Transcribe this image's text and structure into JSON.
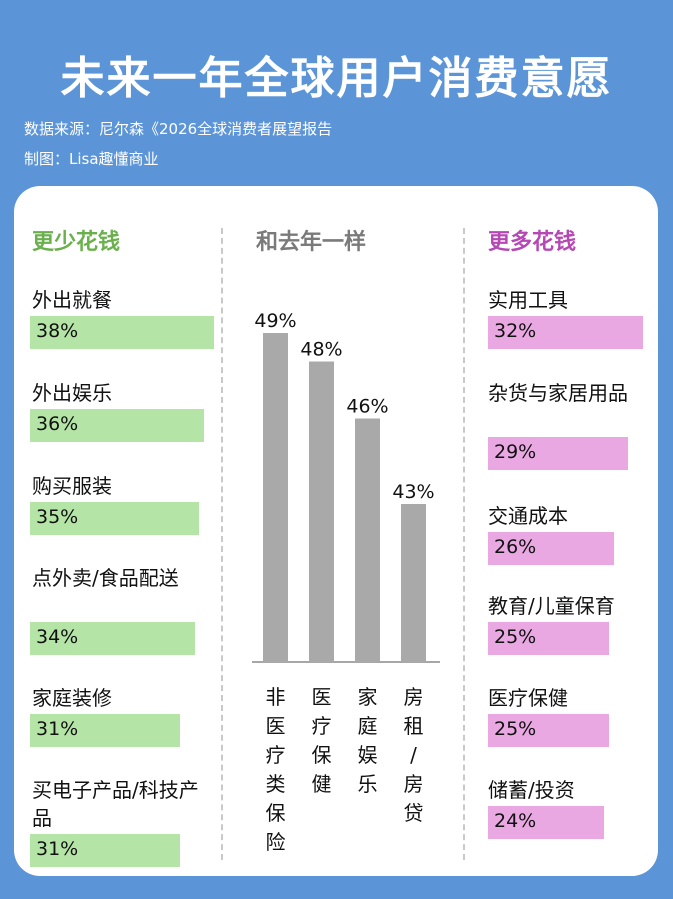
{
  "header": {
    "title": "未来一年全球用户消费意愿",
    "source": "数据来源：尼尔森《2026全球消费者展望报告",
    "credit": "制图：Lisa趣懂商业"
  },
  "colors": {
    "background": "#5b95d8",
    "less_accent": "#6ab04c",
    "less_bar": "#b5e5a6",
    "more_accent": "#b548b5",
    "more_bar": "#e9a8e2",
    "same_bar": "#a9a9a9"
  },
  "chart_data": [
    {
      "type": "bar",
      "orientation": "horizontal",
      "title": "更少花钱",
      "categories": [
        "外出就餐",
        "外出娱乐",
        "购买服装",
        "点外卖/食品配送",
        "家庭装修",
        "买电子产品/科技产品"
      ],
      "values": [
        38,
        36,
        35,
        34,
        31,
        31
      ],
      "labels": [
        "38%",
        "36%",
        "35%",
        "34%",
        "31%",
        "31%"
      ],
      "unit": "%"
    },
    {
      "type": "bar",
      "orientation": "vertical",
      "title": "和去年一样",
      "categories": [
        "非医疗类保险",
        "医疗保健",
        "家庭娱乐",
        "房租/房贷"
      ],
      "values": [
        49,
        48,
        46,
        43
      ],
      "labels": [
        "49%",
        "48%",
        "46%",
        "43%"
      ],
      "unit": "%"
    },
    {
      "type": "bar",
      "orientation": "horizontal",
      "title": "更多花钱",
      "categories": [
        "实用工具",
        "杂货与家居用品",
        "交通成本",
        "教育/儿童保育",
        "医疗保健",
        "储蓄/投资"
      ],
      "values": [
        32,
        29,
        26,
        25,
        25,
        24
      ],
      "labels": [
        "32%",
        "29%",
        "26%",
        "25%",
        "25%",
        "24%"
      ],
      "unit": "%"
    }
  ]
}
